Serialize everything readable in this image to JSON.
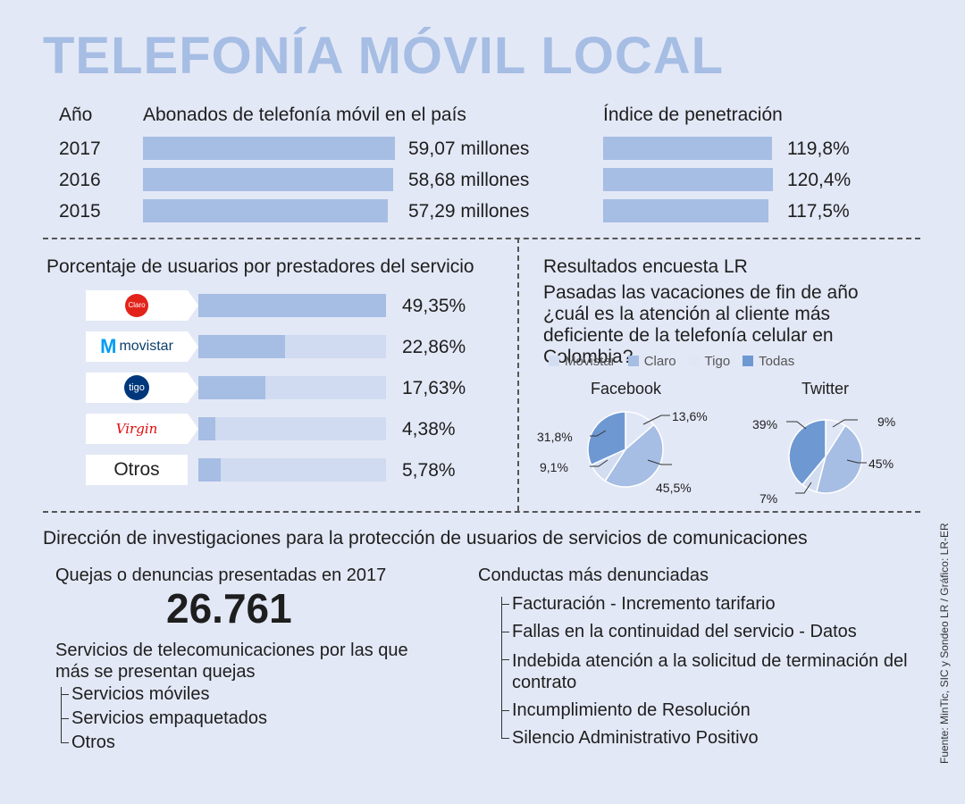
{
  "title": "TELEFONÍA MÓVIL LOCAL",
  "subscribers": {
    "year_header": "Año",
    "subscribers_header": "Abonados de telefonía móvil en el país",
    "penetration_header": "Índice de penetración",
    "rows": [
      {
        "year": "2017",
        "subscribers": 59.07,
        "subscribers_label": "59,07 millones",
        "penetration": 119.8,
        "penetration_label": "119,8%"
      },
      {
        "year": "2016",
        "subscribers": 58.68,
        "subscribers_label": "58,68 millones",
        "penetration": 120.4,
        "penetration_label": "120,4%"
      },
      {
        "year": "2015",
        "subscribers": 57.29,
        "subscribers_label": "57,29 millones",
        "penetration": 117.5,
        "penetration_label": "117,5%"
      }
    ]
  },
  "providers": {
    "title": "Porcentaje de usuarios por prestadores del servicio",
    "items": [
      {
        "name": "Claro",
        "logo": "claro-logo",
        "value": 49.35,
        "label": "49,35%",
        "logo_text": "Claro",
        "logo_color": "#e2231a"
      },
      {
        "name": "Movistar",
        "logo": "movistar-logo",
        "value": 22.86,
        "label": "22,86%",
        "logo_text": "movistar",
        "logo_color": "#019df4"
      },
      {
        "name": "Tigo",
        "logo": "tigo-logo",
        "value": 17.63,
        "label": "17,63%",
        "logo_text": "tigo",
        "logo_color": "#00377b"
      },
      {
        "name": "Virgin",
        "logo": "virgin-logo",
        "value": 4.38,
        "label": "4,38%",
        "logo_text": "Virgin",
        "logo_color": "#e10a0a"
      },
      {
        "name": "Otros",
        "logo": "",
        "value": 5.78,
        "label": "5,78%",
        "logo_text": "Otros",
        "logo_color": "#222222"
      }
    ]
  },
  "survey": {
    "title": "Resultados encuesta LR",
    "question": "Pasadas las vacaciones de fin de año ¿cuál es la atención al cliente más deficiente de la telefonía celular en Colombia?",
    "legend": [
      {
        "name": "Movistar",
        "color": "#d3ddf2"
      },
      {
        "name": "Claro",
        "color": "#a6bde4"
      },
      {
        "name": "Tigo",
        "color": "#dfe6f6"
      },
      {
        "name": "Todas",
        "color": "#6e98d2"
      }
    ],
    "pies": [
      {
        "title": "Facebook",
        "slices": [
          {
            "name": "Tigo",
            "value": 13.6,
            "label": "13,6%"
          },
          {
            "name": "Claro",
            "value": 45.5,
            "label": "45,5%"
          },
          {
            "name": "Movistar",
            "value": 9.1,
            "label": "9,1%"
          },
          {
            "name": "Todas",
            "value": 31.8,
            "label": "31,8%"
          }
        ]
      },
      {
        "title": "Twitter",
        "slices": [
          {
            "name": "Tigo",
            "value": 9,
            "label": "9%"
          },
          {
            "name": "Claro",
            "value": 45,
            "label": "45%"
          },
          {
            "name": "Movistar",
            "value": 7,
            "label": "7%"
          },
          {
            "name": "Todas",
            "value": 39,
            "label": "39%"
          }
        ]
      }
    ]
  },
  "complaints": {
    "title": "Dirección de investigaciones para la protección de usuarios de servicios de comunicaciones",
    "count_label": "Quejas  o denuncias presentadas en 2017",
    "count_value": "26.761",
    "services_title": "Servicios de telecomunicaciones por las que más se presentan quejas",
    "services": [
      "Servicios móviles",
      "Servicios empaquetados",
      "Otros"
    ],
    "conducts_title": "Conductas más denunciadas",
    "conducts": [
      "Facturación - Incremento tarifario",
      "Fallas en la continuidad del servicio - Datos",
      "Indebida atención a la solicitud de terminación del contrato",
      "Incumplimiento de Resolución",
      "Silencio Administrativo Positivo"
    ]
  },
  "source": "Fuente: MinTic,  SIC y Sondeo LR / Gráfico: LR-ER",
  "chart_data": [
    {
      "type": "bar",
      "title": "Abonados de telefonía móvil en el país",
      "categories": [
        "2017",
        "2016",
        "2015"
      ],
      "values": [
        59.07,
        58.68,
        57.29
      ],
      "unit": "millones"
    },
    {
      "type": "bar",
      "title": "Índice de penetración",
      "categories": [
        "2017",
        "2016",
        "2015"
      ],
      "values": [
        119.8,
        120.4,
        117.5
      ],
      "unit": "%"
    },
    {
      "type": "bar",
      "title": "Porcentaje de usuarios por prestadores del servicio",
      "categories": [
        "Claro",
        "Movistar",
        "Tigo",
        "Virgin",
        "Otros"
      ],
      "values": [
        49.35,
        22.86,
        17.63,
        4.38,
        5.78
      ],
      "unit": "%"
    },
    {
      "type": "pie",
      "title": "Facebook",
      "categories": [
        "Tigo",
        "Claro",
        "Movistar",
        "Todas"
      ],
      "values": [
        13.6,
        45.5,
        9.1,
        31.8
      ]
    },
    {
      "type": "pie",
      "title": "Twitter",
      "categories": [
        "Tigo",
        "Claro",
        "Movistar",
        "Todas"
      ],
      "values": [
        9,
        45,
        7,
        39
      ]
    }
  ]
}
